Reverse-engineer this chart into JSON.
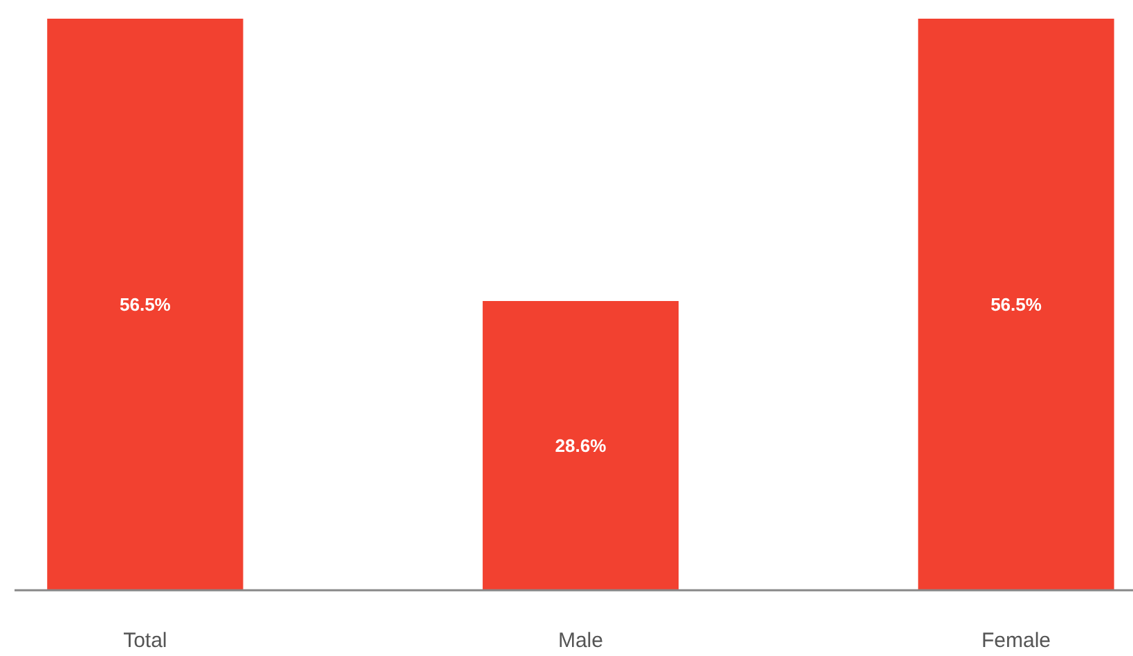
{
  "chart_data": {
    "type": "bar",
    "categories": [
      "Total",
      "Male",
      "Female"
    ],
    "values": [
      56.5,
      28.6,
      56.5
    ],
    "color": "#f24130",
    "value_labels": [
      "56.5%",
      "28.6%",
      "56.5%"
    ]
  }
}
